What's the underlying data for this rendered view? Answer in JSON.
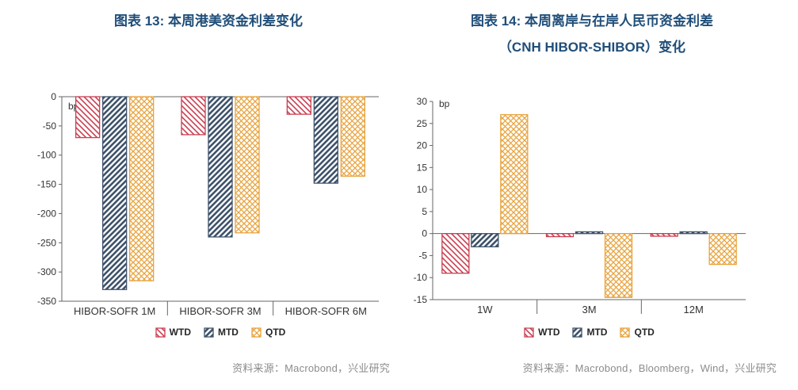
{
  "colors": {
    "title": "#1F4E79",
    "axis_line": "#666666",
    "axis_text": "#333333",
    "legend_text": "#262626",
    "source_text": "#8C8C8C",
    "wtd": "#C94052",
    "mtd": "#3F536B",
    "qtd": "#E8A33D"
  },
  "chart_data": [
    {
      "type": "bar",
      "title_lines": [
        "图表 13: 本周港美资金利差变化"
      ],
      "unit_label": "bp",
      "categories": [
        "HIBOR-SOFR 1M",
        "HIBOR-SOFR 3M",
        "HIBOR-SOFR 6M"
      ],
      "series": [
        {
          "name": "WTD",
          "color": "#C94052",
          "hatch": "diag-down",
          "values": [
            -70,
            -65,
            -30
          ]
        },
        {
          "name": "MTD",
          "color": "#3F536B",
          "hatch": "diag-up",
          "values": [
            -330,
            -240,
            -148
          ]
        },
        {
          "name": "QTD",
          "color": "#E8A33D",
          "hatch": "cross",
          "values": [
            -315,
            -233,
            -136
          ]
        }
      ],
      "ylim": [
        -350,
        0
      ],
      "ytick_step": 50,
      "grid": false,
      "legend_position": "bottom",
      "source": "资料来源：Macrobond，兴业研究"
    },
    {
      "type": "bar",
      "title_lines": [
        "图表 14: 本周离岸与在岸人民币资金利差",
        "（CNH HIBOR-SHIBOR）变化"
      ],
      "unit_label": "bp",
      "categories": [
        "1W",
        "3M",
        "12M"
      ],
      "series": [
        {
          "name": "WTD",
          "color": "#C94052",
          "hatch": "diag-down",
          "values": [
            -9,
            -0.7,
            -0.6
          ]
        },
        {
          "name": "MTD",
          "color": "#3F536B",
          "hatch": "diag-up",
          "values": [
            -3,
            0.4,
            0.4
          ]
        },
        {
          "name": "QTD",
          "color": "#E8A33D",
          "hatch": "cross",
          "values": [
            27,
            -14.5,
            -7
          ]
        }
      ],
      "ylim": [
        -15,
        30
      ],
      "ytick_step": 5,
      "grid": false,
      "legend_position": "bottom",
      "source": "资料来源：Macrobond，Bloomberg，Wind，兴业研究"
    }
  ]
}
